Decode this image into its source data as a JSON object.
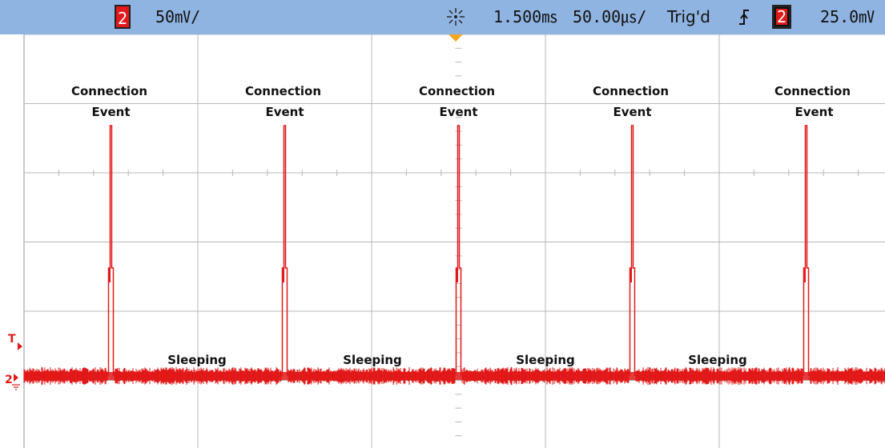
{
  "status_bar": {
    "channel_badge_left": "2",
    "volts_per_div": "50㎷/",
    "time_offset": "1.500㎳",
    "time_per_div": "50.00㎲/",
    "trigger_status": "Trig'd",
    "trigger_slope_icon": "rising-edge-icon",
    "channel_badge_right": "2",
    "trigger_level": "25.0㎷",
    "acquisition_icon": "run-starburst-icon"
  },
  "markers": {
    "trigger_marker": "T",
    "channel_marker": "2"
  },
  "colors": {
    "bar_background": "#8fb4e1",
    "trace": "#e01a1a",
    "grid": "#b8b8b8",
    "trigger_position_marker": "#f5a623"
  },
  "chart_data": {
    "type": "line",
    "title": "",
    "xlabel": "",
    "ylabel": "",
    "grid": true,
    "grid_divisions": {
      "x": 10,
      "y": 6
    },
    "time_per_division": "50.00㎲",
    "volts_per_division": "50㎷",
    "series": [
      {
        "values": "idle noise baseline with five short current spikes",
        "spike_divisions": [
          1,
          3,
          5,
          7,
          9
        ]
      }
    ],
    "annotations": [
      {
        "text_line1": "Connection",
        "text_line2": "Event"
      },
      {
        "text_line1": "Connection",
        "text_line2": "Event"
      },
      {
        "text_line1": "Connection",
        "text_line2": "Event"
      },
      {
        "text_line1": "Connection",
        "text_line2": "Event"
      },
      {
        "text_line1": "Connection",
        "text_line2": "Event"
      }
    ],
    "sleep_labels": [
      "Sleeping",
      "Sleeping",
      "Sleeping",
      "Sleeping"
    ]
  }
}
